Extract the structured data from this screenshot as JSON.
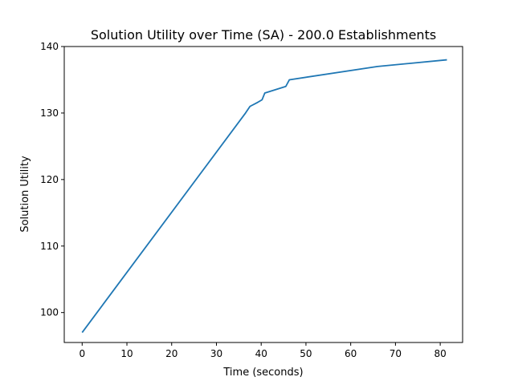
{
  "chart_data": {
    "type": "line",
    "title": "Solution Utility over Time (SA) -  200.0 Establishments",
    "xlabel": "Time (seconds)",
    "ylabel": "Solution Utility",
    "xlim": [
      -4,
      85
    ],
    "ylim": [
      95.5,
      140
    ],
    "xticks": [
      0,
      10,
      20,
      30,
      40,
      50,
      60,
      70,
      80
    ],
    "yticks": [
      100,
      110,
      120,
      130,
      140
    ],
    "grid": false,
    "series": [
      {
        "color": "#1f77b4",
        "x": [
          0,
          36.5,
          37.5,
          39.2,
          40.2,
          40.8,
          45.5,
          46.3,
          66,
          81.5
        ],
        "y": [
          97,
          130,
          131,
          131.6,
          132,
          133,
          134,
          135,
          137,
          138
        ]
      }
    ]
  }
}
